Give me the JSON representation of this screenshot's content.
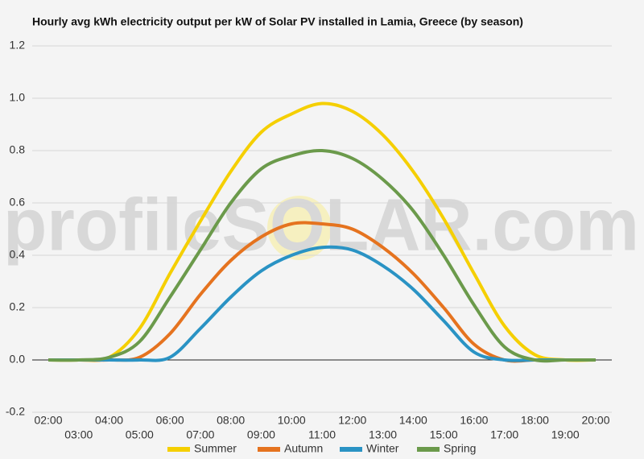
{
  "chart_data": {
    "type": "line",
    "title": "Hourly avg kWh electricity output per kW of Solar PV installed in Lamia, Greece (by season)",
    "watermark": "profileSOLAR.com",
    "categories": [
      "02:00",
      "03:00",
      "04:00",
      "05:00",
      "06:00",
      "07:00",
      "08:00",
      "09:00",
      "10:00",
      "11:00",
      "12:00",
      "13:00",
      "14:00",
      "15:00",
      "16:00",
      "17:00",
      "18:00",
      "19:00",
      "20:00"
    ],
    "series": [
      {
        "name": "Summer",
        "color": "#f5cf00",
        "values": [
          0,
          0,
          0.01,
          0.12,
          0.33,
          0.53,
          0.72,
          0.87,
          0.94,
          0.98,
          0.95,
          0.86,
          0.72,
          0.54,
          0.33,
          0.13,
          0.02,
          0,
          0
        ]
      },
      {
        "name": "Autumn",
        "color": "#e5731f",
        "values": [
          0,
          0,
          0,
          0.01,
          0.1,
          0.25,
          0.38,
          0.47,
          0.52,
          0.52,
          0.5,
          0.43,
          0.33,
          0.2,
          0.06,
          0,
          0,
          0,
          0
        ]
      },
      {
        "name": "Winter",
        "color": "#2a93c4",
        "values": [
          0,
          0,
          0,
          0,
          0.01,
          0.12,
          0.24,
          0.34,
          0.4,
          0.43,
          0.42,
          0.36,
          0.27,
          0.15,
          0.03,
          0,
          0,
          0,
          0
        ]
      },
      {
        "name": "Spring",
        "color": "#6b9a4b",
        "values": [
          0,
          0,
          0.01,
          0.07,
          0.24,
          0.42,
          0.6,
          0.73,
          0.78,
          0.8,
          0.77,
          0.69,
          0.57,
          0.4,
          0.21,
          0.05,
          0,
          0,
          0
        ]
      }
    ],
    "ylim": [
      -0.2,
      1.2
    ],
    "yticks": [
      -0.2,
      {
        "value": 0,
        "label": "0.0"
      },
      0.2,
      0.4,
      0.6,
      0.8,
      {
        "value": 1,
        "label": "1.0"
      },
      1.2
    ],
    "grid": true,
    "legend": "bottom"
  }
}
